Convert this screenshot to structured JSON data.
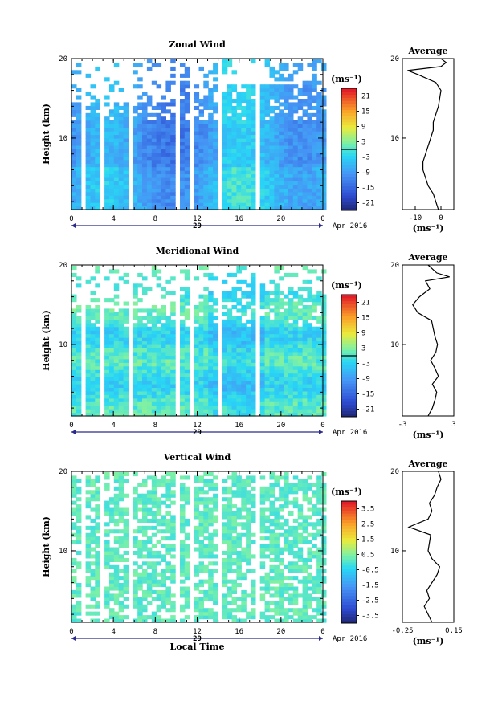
{
  "chart_data": [
    {
      "type": "heatmap",
      "title": "Zonal Wind",
      "ylabel": "Height (km)",
      "xticks": [
        "0",
        "4",
        "8",
        "12",
        "16",
        "20",
        "0"
      ],
      "yticks": [
        "10",
        "20"
      ],
      "date_label": "29",
      "date_suffix": "Apr 2016",
      "xlim": [
        0,
        24
      ],
      "ylim": [
        1,
        20
      ],
      "colorbar": {
        "unit": "(ms⁻¹)",
        "ticks": [
          "21",
          "15",
          "9",
          "3",
          "-3",
          "-9",
          "-15",
          "-21"
        ],
        "range": [
          -24,
          24
        ],
        "contour": 0
      },
      "profile": {
        "title": "Average",
        "xticks": [
          "-10",
          "0"
        ],
        "xlim": [
          -15,
          5
        ],
        "xlabel": "(ms⁻¹)",
        "heights": [
          1,
          2,
          3,
          4,
          5,
          6,
          7,
          8,
          9,
          10,
          11,
          12,
          13,
          14,
          15,
          16,
          17,
          18,
          18.5,
          19,
          19.5,
          20
        ],
        "values": [
          -1,
          -2,
          -3,
          -5,
          -6,
          -7,
          -7,
          -6,
          -5,
          -4,
          -3,
          -3,
          -2,
          -1,
          -0.5,
          0,
          -2,
          -9,
          -13,
          0,
          2,
          0
        ]
      }
    },
    {
      "type": "heatmap",
      "title": "Meridional Wind",
      "ylabel": "Height (km)",
      "xticks": [
        "0",
        "4",
        "8",
        "12",
        "16",
        "20",
        "0"
      ],
      "yticks": [
        "10",
        "20"
      ],
      "date_label": "29",
      "date_suffix": "Apr 2016",
      "xlim": [
        0,
        24
      ],
      "ylim": [
        1,
        20
      ],
      "colorbar": {
        "unit": "(ms⁻¹)",
        "ticks": [
          "21",
          "15",
          "9",
          "3",
          "-3",
          "-9",
          "-15",
          "-21"
        ],
        "range": [
          -24,
          24
        ],
        "contour": 0
      },
      "profile": {
        "title": "Average",
        "xticks": [
          "-3",
          "3"
        ],
        "xlim": [
          -3,
          3
        ],
        "xlabel": "(ms⁻¹)",
        "heights": [
          1,
          2,
          3,
          4,
          5,
          6,
          7,
          8,
          9,
          10,
          11,
          12,
          13,
          14,
          15,
          16,
          17,
          18,
          18.5,
          19,
          20
        ],
        "values": [
          0,
          0.5,
          0.8,
          1,
          0.5,
          1.2,
          0.8,
          0.3,
          0.9,
          1.1,
          0.8,
          0.6,
          0.4,
          -1.2,
          -1.8,
          -1,
          0.2,
          -0.3,
          2.5,
          1,
          0
        ]
      }
    },
    {
      "type": "heatmap",
      "title": "Vertical Wind",
      "ylabel": "Height (km)",
      "xlabel": "Local Time",
      "xticks": [
        "0",
        "4",
        "8",
        "12",
        "16",
        "20",
        "0"
      ],
      "yticks": [
        "10",
        "20"
      ],
      "date_label": "29",
      "date_suffix": "Apr 2016",
      "xlim": [
        0,
        24
      ],
      "ylim": [
        1,
        20
      ],
      "colorbar": {
        "unit": "(ms⁻¹)",
        "ticks": [
          "3.5",
          "2.5",
          "1.5",
          "0.5",
          "-0.5",
          "-1.5",
          "-2.5",
          "-3.5"
        ],
        "range": [
          -4,
          4
        ]
      },
      "profile": {
        "title": "Average",
        "xticks": [
          "-0.25",
          "0.15"
        ],
        "xlim": [
          -0.25,
          0.15
        ],
        "xlabel": "(ms⁻¹)",
        "heights": [
          1,
          2,
          3,
          4,
          5,
          6,
          7,
          8,
          9,
          10,
          11,
          12,
          13,
          14,
          15,
          16,
          17,
          18,
          19,
          20
        ],
        "values": [
          -0.02,
          -0.05,
          -0.08,
          -0.04,
          -0.06,
          -0.02,
          0.02,
          0.04,
          -0.02,
          -0.05,
          -0.04,
          -0.03,
          -0.2,
          -0.05,
          -0.02,
          -0.04,
          0,
          0.02,
          0.05,
          0.03
        ]
      }
    }
  ]
}
